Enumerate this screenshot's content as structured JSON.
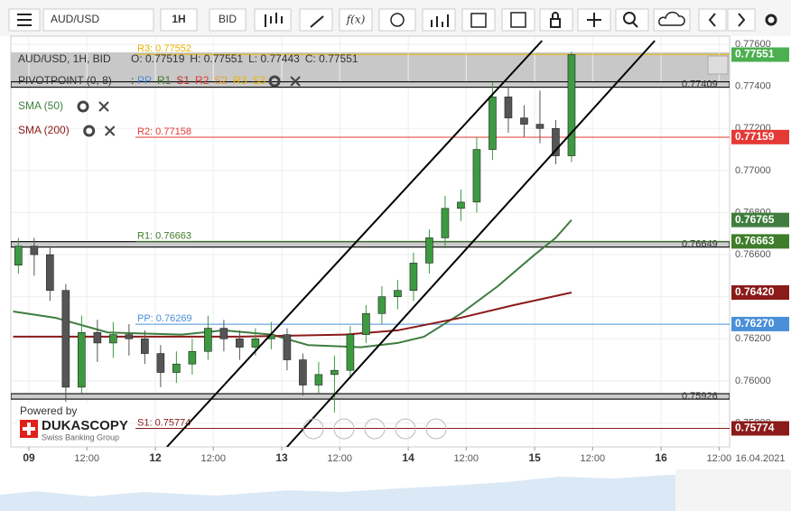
{
  "toolbar": {
    "symbol": "AUD/USD",
    "timeframe": "1H",
    "side": "BID",
    "fx": "f(x)"
  },
  "branding": {
    "powered": "Powered by",
    "name": "DUKASCOPY",
    "tagline": "Swiss Banking Group"
  },
  "chart_data": {
    "type": "candlestick",
    "legend_title": "AUD/USD, 1H, BID",
    "ohlc": [
      {
        "value": 0.77519,
        "label": "O: 0.77519"
      },
      {
        "value": 0.77551,
        "label": "H: 0.77551"
      },
      {
        "value": 0.77443,
        "label": "L: 0.77443"
      },
      {
        "value": 0.77551,
        "label": "C: 0.77551"
      }
    ],
    "pivot_title": "PIVOTPOINT (0, 8)",
    "pivot_separator": ":",
    "pivot_keys": [
      {
        "text": "PP",
        "color": "#4a90d9"
      },
      {
        "text": "R1",
        "color": "#3f7d2a"
      },
      {
        "text": "S1",
        "color": "#c62828"
      },
      {
        "text": "R2",
        "color": "#e53935"
      },
      {
        "text": "S2",
        "color": "#f0a030"
      },
      {
        "text": "R3",
        "color": "#e8b400"
      },
      {
        "text": "S3",
        "color": "#e8b400"
      }
    ],
    "up_color": "#3c9a40",
    "down_color": "#555555",
    "x": [
      -2,
      1,
      4,
      7,
      10,
      13,
      16,
      19,
      22,
      25,
      28,
      31,
      34,
      37,
      40,
      43,
      46,
      49,
      52,
      55,
      58,
      61,
      64,
      67,
      70,
      73,
      76,
      79,
      82,
      85,
      88,
      91,
      94,
      97,
      100,
      103
    ],
    "open": [
      0.7655,
      0.7664,
      0.766,
      0.7643,
      0.7597,
      0.7623,
      0.7618,
      0.7622,
      0.762,
      0.7613,
      0.7604,
      0.7608,
      0.7614,
      0.7625,
      0.762,
      0.7616,
      0.762,
      0.7622,
      0.761,
      0.7598,
      0.7603,
      0.7605,
      0.7622,
      0.7632,
      0.764,
      0.7643,
      0.7656,
      0.7668,
      0.7682,
      0.7685,
      0.771,
      0.7735,
      0.7725,
      0.7722,
      0.772,
      0.7707
    ],
    "high": [
      0.7668,
      0.7668,
      0.7664,
      0.7646,
      0.7631,
      0.7629,
      0.7628,
      0.7627,
      0.7624,
      0.7617,
      0.7614,
      0.762,
      0.7631,
      0.7629,
      0.7624,
      0.7625,
      0.7628,
      0.7625,
      0.7613,
      0.7609,
      0.7612,
      0.7626,
      0.7636,
      0.7645,
      0.7648,
      0.7661,
      0.7672,
      0.7688,
      0.7691,
      0.7716,
      0.7742,
      0.774,
      0.7731,
      0.7738,
      0.7724,
      0.77565
    ],
    "low": [
      0.7651,
      0.765,
      0.7638,
      0.759,
      0.7594,
      0.7609,
      0.7611,
      0.7612,
      0.7608,
      0.7597,
      0.7599,
      0.7603,
      0.761,
      0.7614,
      0.761,
      0.7612,
      0.7615,
      0.7605,
      0.7593,
      0.7594,
      0.7585,
      0.7601,
      0.7618,
      0.7627,
      0.7634,
      0.7638,
      0.7651,
      0.7663,
      0.7676,
      0.768,
      0.7705,
      0.7718,
      0.7716,
      0.7713,
      0.7703,
      0.7704
    ],
    "close": [
      0.7664,
      0.766,
      0.7643,
      0.7597,
      0.7623,
      0.7618,
      0.7622,
      0.762,
      0.7613,
      0.7604,
      0.7608,
      0.7614,
      0.7625,
      0.762,
      0.7616,
      0.762,
      0.7622,
      0.761,
      0.7598,
      0.7603,
      0.7605,
      0.7622,
      0.7632,
      0.764,
      0.7643,
      0.7656,
      0.7668,
      0.7682,
      0.7685,
      0.771,
      0.7735,
      0.7725,
      0.7722,
      0.772,
      0.7707,
      0.77551
    ],
    "series": [
      {
        "name": "SMA (50)",
        "color": "#3f7d3f",
        "x": [
          -3,
          5,
          15,
          29,
          37,
          46,
          53,
          63,
          70,
          75,
          82,
          89,
          96,
          100,
          103
        ],
        "values": [
          0.7633,
          0.763,
          0.7623,
          0.7622,
          0.7624,
          0.7622,
          0.7617,
          0.7616,
          0.7618,
          0.7621,
          0.7632,
          0.7645,
          0.766,
          0.7668,
          0.76765
        ]
      },
      {
        "name": "SMA (200)",
        "color": "#8b1a1a",
        "x": [
          -3,
          20,
          40,
          60,
          70,
          82,
          92,
          103
        ],
        "values": [
          0.7621,
          0.7621,
          0.7621,
          0.7622,
          0.7624,
          0.763,
          0.7636,
          0.7642
        ]
      }
    ],
    "levels": [
      {
        "value": 0.77552,
        "label": "R3: 0.77552",
        "color": "#e8b400"
      },
      {
        "value": 0.77158,
        "label": "R2: 0.77158",
        "color": "#e53935"
      },
      {
        "value": 0.76663,
        "label": "R1: 0.76663",
        "color": "#3f7d2a"
      },
      {
        "value": 0.76269,
        "label": "PP: 0.76269",
        "color": "#4a90d9"
      },
      {
        "value": 0.75774,
        "label": "S1: 0.75774",
        "color": "#8b1a1a"
      }
    ],
    "bands": [
      0.77409,
      0.76649,
      0.75926
    ],
    "channels": [
      {
        "x": [
          26.2,
          97.4
        ],
        "values": [
          0.75686,
          0.77617
        ]
      },
      {
        "x": [
          49,
          118.8
        ],
        "values": [
          0.75686,
          0.77617
        ]
      }
    ],
    "tags": [
      {
        "value": 0.77551,
        "label": "0.77551",
        "color": "#4caf50"
      },
      {
        "value": 0.77159,
        "label": "0.77159",
        "color": "#e53935"
      },
      {
        "value": 0.76765,
        "label": "0.76765",
        "color": "#3f7d3f"
      },
      {
        "value": 0.76663,
        "label": "0.76663",
        "color": "#3f7d2a"
      },
      {
        "value": 0.7642,
        "label": "0.76420",
        "color": "#8b1a1a"
      },
      {
        "value": 0.7627,
        "label": "0.76270",
        "color": "#4a90d9"
      },
      {
        "value": 0.75774,
        "label": "0.75774",
        "color": "#8b1a1a"
      }
    ],
    "xlim": [
      -3.43,
      133
    ],
    "ylim": [
      0.75686,
      0.77639
    ],
    "xticks": [
      {
        "value": 0,
        "label": "09"
      },
      {
        "value": 11,
        "label": "12:00"
      },
      {
        "value": 24,
        "label": "12"
      },
      {
        "value": 35,
        "label": "12:00"
      },
      {
        "value": 48,
        "label": "13"
      },
      {
        "value": 59,
        "label": "12:00"
      },
      {
        "value": 72,
        "label": "14"
      },
      {
        "value": 83,
        "label": "12:00"
      },
      {
        "value": 96,
        "label": "15"
      },
      {
        "value": 107,
        "label": "12:00"
      },
      {
        "value": 120,
        "label": "16"
      },
      {
        "value": 131,
        "label": "12:00"
      }
    ],
    "yticks": [
      {
        "value": 0.758,
        "label": "0.75800"
      },
      {
        "value": 0.76,
        "label": "0.76000"
      },
      {
        "value": 0.762,
        "label": "0.76200"
      },
      {
        "value": 0.764,
        "label": "0.76400"
      },
      {
        "value": 0.766,
        "label": "0.76600"
      },
      {
        "value": 0.768,
        "label": "0.76800"
      },
      {
        "value": 0.77,
        "label": "0.77000"
      },
      {
        "value": 0.772,
        "label": "0.77200"
      },
      {
        "value": 0.774,
        "label": "0.77400"
      },
      {
        "value": 0.776,
        "label": "0.77600"
      }
    ],
    "date_label": "16.04.2021",
    "grid": true
  }
}
